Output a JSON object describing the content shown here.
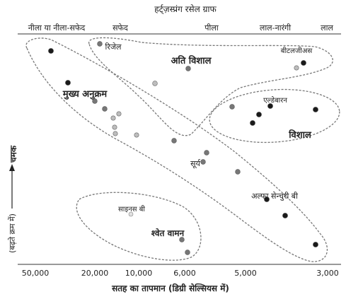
{
  "title": "हर्ट्ज़स्प्रंग रसेल ग्राफ",
  "color_labels": [
    "नीला या नीला-सफेद",
    "सफेद",
    "पीला",
    "लाल-नारंगी",
    "लाल"
  ],
  "x_axis": {
    "label": "सतह का तापमान (डिग्री सेल्सियस में)",
    "ticks": [
      "50,000",
      "20,000",
      "10,000",
      "6,000",
      "5,000",
      "3,000"
    ]
  },
  "y_axis": {
    "label": "चमक",
    "sublabel": "(बढ़ते क्रम में)"
  },
  "regions": {
    "main_sequence": "मुख्य अनुक्रम",
    "supergiants": "अति विशाल",
    "giants": "विशाल",
    "white_dwarfs": "श्वेत वामन"
  },
  "stars": {
    "rigel": "रिजेल",
    "betelgeuse": "बीटलजीअस",
    "aldebaran": "एल्डेबारन",
    "sun": "सूर्य",
    "alpha_centauri_b": "अल्फा सेन्चुरी बी",
    "sirius_b": "साइनस बी"
  },
  "colors": {
    "ink": "#222222",
    "dash": "#777777",
    "dot_dark": "#1a1a1a",
    "dot_mid": "#777777",
    "dot_light": "#bdbdbd"
  }
}
